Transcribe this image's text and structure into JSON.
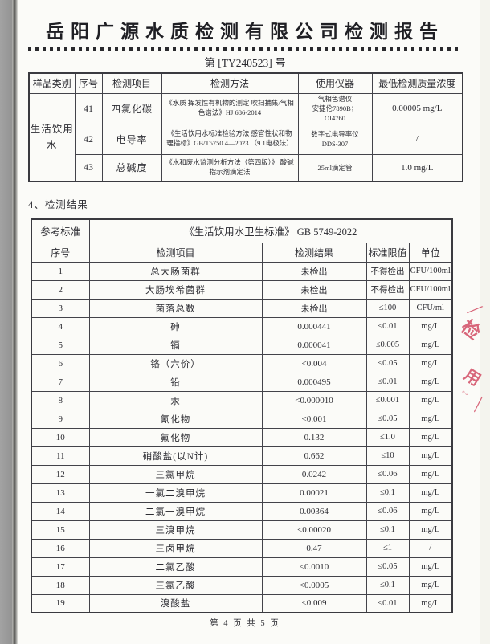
{
  "report": {
    "title": "岳阳广源水质检测有限公司检测报告",
    "report_no": "第 [TY240523] 号",
    "section4_heading": "4、检测结果",
    "page_footer": "第 4 页  共 5 页"
  },
  "method_table": {
    "headers": [
      "样品类别",
      "序号",
      "检测项目",
      "检测方法",
      "使用仪器",
      "最低检测质量浓度"
    ],
    "sample_category": "生活饮用水",
    "rows": [
      {
        "no": "41",
        "item": "四氯化碳",
        "method": "《水质 挥发性有机物的测定 吹扫捕集/气相色谱法》HJ 686-2014",
        "instrument": "气相色谱仪\n安捷伦7890B；\nOI4760",
        "min_conc": "0.00005 mg/L"
      },
      {
        "no": "42",
        "item": "电导率",
        "method": "《生活饮用水标准检验方法 感官性状和物理指标》GB/T5750.4—2023 （9.1电极法）",
        "instrument": "数字式电导率仪\nDDS-307",
        "min_conc": "/"
      },
      {
        "no": "43",
        "item": "总碱度",
        "method": "《水和废水监测分析方法（第四版）》 酸碱指示剂滴定法",
        "instrument": "25ml滴定管",
        "min_conc": "1.0 mg/L"
      }
    ]
  },
  "results_table": {
    "reference_label": "参考标准",
    "reference_value": "《生活饮用水卫生标准》 GB 5749-2022",
    "headers": [
      "序号",
      "检测项目",
      "检测结果",
      "标准限值",
      "单位"
    ],
    "rows": [
      [
        "1",
        "总大肠菌群",
        "未检出",
        "不得检出",
        "CFU/100ml"
      ],
      [
        "2",
        "大肠埃希菌群",
        "未检出",
        "不得检出",
        "CFU/100ml"
      ],
      [
        "3",
        "菌落总数",
        "未检出",
        "≤100",
        "CFU/ml"
      ],
      [
        "4",
        "砷",
        "0.000441",
        "≤0.01",
        "mg/L"
      ],
      [
        "5",
        "镉",
        "0.000041",
        "≤0.005",
        "mg/L"
      ],
      [
        "6",
        "铬（六价）",
        "<0.004",
        "≤0.05",
        "mg/L"
      ],
      [
        "7",
        "铅",
        "0.000495",
        "≤0.01",
        "mg/L"
      ],
      [
        "8",
        "汞",
        "<0.000010",
        "≤0.001",
        "mg/L"
      ],
      [
        "9",
        "氰化物",
        "<0.001",
        "≤0.05",
        "mg/L"
      ],
      [
        "10",
        "氟化物",
        "0.132",
        "≤1.0",
        "mg/L"
      ],
      [
        "11",
        "硝酸盐(以N计)",
        "0.662",
        "≤10",
        "mg/L"
      ],
      [
        "12",
        "三氯甲烷",
        "0.0242",
        "≤0.06",
        "mg/L"
      ],
      [
        "13",
        "一氯二溴甲烷",
        "0.00021",
        "≤0.1",
        "mg/L"
      ],
      [
        "14",
        "二氯一溴甲烷",
        "0.00364",
        "≤0.06",
        "mg/L"
      ],
      [
        "15",
        "三溴甲烷",
        "<0.00020",
        "≤0.1",
        "mg/L"
      ],
      [
        "16",
        "三卤甲烷",
        "0.47",
        "≤1",
        "/"
      ],
      [
        "17",
        "二氯乙酸",
        "<0.0010",
        "≤0.05",
        "mg/L"
      ],
      [
        "18",
        "三氯乙酸",
        "<0.0005",
        "≤0.1",
        "mg/L"
      ],
      [
        "19",
        "溴酸盐",
        "<0.009",
        "≤0.01",
        "mg/L"
      ]
    ]
  },
  "stamp": {
    "color": "#d4536a",
    "partial_glyphs": [
      "检",
      "用"
    ],
    "stroke_top": "╱",
    "dots": "°°",
    "stroke_bottom": "╲"
  }
}
